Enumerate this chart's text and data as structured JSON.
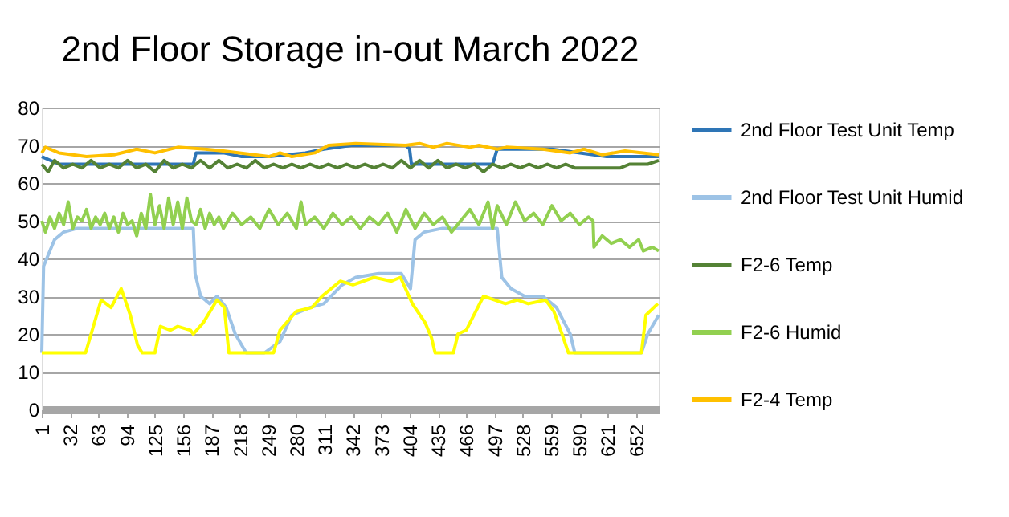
{
  "chart_data": {
    "type": "line",
    "title": "2nd Floor Storage in-out March 2022",
    "xlim": [
      1,
      677
    ],
    "xticks": [
      1,
      32,
      63,
      94,
      125,
      156,
      187,
      218,
      249,
      280,
      311,
      342,
      373,
      404,
      435,
      466,
      497,
      528,
      559,
      590,
      621,
      652
    ],
    "ylim": [
      0,
      80
    ],
    "yticks": [
      0,
      10,
      20,
      30,
      40,
      50,
      60,
      70,
      80
    ],
    "grid": "y",
    "legend": "right",
    "line_style": "solid",
    "marker": "none",
    "series": [
      {
        "name": "2nd Floor Test Unit Temp",
        "color": "#2e75b6",
        "x": [
          1,
          20,
          60,
          100,
          140,
          167,
          170,
          200,
          220,
          250,
          290,
          310,
          340,
          400,
          404,
          406,
          450,
          495,
          500,
          560,
          620,
          677
        ],
        "values": [
          67,
          65,
          65,
          65,
          65,
          65,
          68,
          68,
          67,
          67,
          68,
          69,
          70,
          70,
          69,
          65,
          65,
          65,
          69,
          69,
          67,
          67
        ]
      },
      {
        "name": "2nd Floor Test Unit Humid",
        "color": "#9dc3e6",
        "x": [
          1,
          3,
          15,
          25,
          40,
          100,
          167,
          169,
          175,
          185,
          193,
          203,
          213,
          225,
          245,
          262,
          275,
          295,
          310,
          330,
          345,
          370,
          395,
          405,
          410,
          420,
          440,
          495,
          500,
          505,
          515,
          530,
          550,
          565,
          580,
          585,
          658,
          665,
          677
        ],
        "values": [
          15,
          38,
          45,
          47,
          48,
          48,
          48,
          36,
          30,
          28,
          30,
          27,
          20,
          15,
          15,
          18,
          25,
          27,
          28,
          33,
          35,
          36,
          36,
          32,
          45,
          47,
          48,
          48,
          48,
          35,
          32,
          30,
          30,
          27,
          20,
          15,
          15,
          20,
          25
        ]
      },
      {
        "name": "F2-6 Temp",
        "color": "#548235",
        "x": [
          1,
          8,
          15,
          25,
          35,
          45,
          55,
          65,
          75,
          85,
          95,
          105,
          115,
          125,
          135,
          145,
          155,
          165,
          175,
          185,
          195,
          205,
          215,
          225,
          235,
          245,
          255,
          265,
          275,
          285,
          295,
          305,
          315,
          325,
          335,
          345,
          355,
          365,
          375,
          385,
          395,
          405,
          415,
          425,
          435,
          445,
          455,
          465,
          475,
          485,
          495,
          505,
          515,
          525,
          535,
          545,
          555,
          565,
          575,
          585,
          595,
          605,
          615,
          625,
          635,
          645,
          655,
          665,
          677
        ],
        "values": [
          65,
          63,
          66,
          64,
          65,
          64,
          66,
          64,
          65,
          64,
          66,
          64,
          65,
          63,
          66,
          64,
          65,
          64,
          66,
          64,
          66,
          64,
          65,
          64,
          66,
          64,
          65,
          64,
          65,
          64,
          65,
          64,
          65,
          64,
          65,
          64,
          65,
          64,
          65,
          64,
          66,
          64,
          66,
          64,
          66,
          64,
          65,
          64,
          65,
          63,
          65,
          64,
          65,
          64,
          65,
          64,
          65,
          64,
          65,
          64,
          64,
          64,
          64,
          64,
          64,
          65,
          65,
          65,
          66
        ]
      },
      {
        "name": "F2-6 Humid",
        "color": "#92d050",
        "x": [
          1,
          5,
          10,
          15,
          20,
          25,
          30,
          35,
          40,
          45,
          50,
          55,
          60,
          65,
          70,
          75,
          80,
          85,
          90,
          95,
          100,
          105,
          110,
          115,
          120,
          125,
          130,
          135,
          140,
          145,
          150,
          155,
          160,
          165,
          170,
          175,
          180,
          185,
          190,
          195,
          200,
          210,
          220,
          230,
          240,
          250,
          260,
          270,
          280,
          285,
          290,
          300,
          310,
          320,
          330,
          340,
          350,
          360,
          370,
          380,
          390,
          400,
          410,
          420,
          430,
          440,
          450,
          460,
          470,
          480,
          490,
          495,
          500,
          510,
          520,
          530,
          540,
          550,
          560,
          570,
          580,
          590,
          600,
          605,
          606,
          615,
          625,
          635,
          645,
          655,
          660,
          670,
          677
        ],
        "values": [
          50,
          47,
          51,
          48,
          52,
          49,
          55,
          48,
          51,
          50,
          53,
          48,
          51,
          49,
          52,
          48,
          51,
          47,
          52,
          49,
          50,
          46,
          52,
          48,
          57,
          49,
          54,
          48,
          56,
          49,
          55,
          48,
          56,
          50,
          49,
          53,
          48,
          52,
          49,
          51,
          48,
          52,
          49,
          51,
          48,
          53,
          49,
          52,
          48,
          55,
          49,
          51,
          48,
          52,
          49,
          51,
          48,
          51,
          49,
          52,
          47,
          53,
          48,
          52,
          49,
          51,
          47,
          50,
          53,
          49,
          55,
          48,
          54,
          49,
          55,
          50,
          52,
          49,
          54,
          50,
          52,
          49,
          51,
          50,
          43,
          46,
          44,
          45,
          43,
          45,
          42,
          43,
          42
        ]
      },
      {
        "name": "F2-4 Temp",
        "color": "#ffc000",
        "x": [
          1,
          5,
          20,
          50,
          80,
          105,
          125,
          150,
          180,
          200,
          250,
          262,
          275,
          300,
          315,
          345,
          400,
          415,
          430,
          445,
          470,
          480,
          500,
          510,
          550,
          580,
          595,
          615,
          640,
          677
        ],
        "values": [
          68,
          69.5,
          68,
          67,
          67.5,
          69,
          68,
          69.5,
          69,
          68.5,
          67,
          68,
          67,
          68,
          70,
          70.5,
          70,
          70.5,
          69.5,
          70.5,
          69.5,
          70,
          69,
          69.5,
          69,
          68,
          69,
          67.5,
          68.5,
          67.5
        ]
      },
      {
        "color": "#ffff00",
        "x": [
          1,
          49,
          66,
          77,
          88,
          98,
          106,
          111,
          125,
          131,
          142,
          150,
          164,
          167,
          178,
          193,
          201,
          206,
          255,
          262,
          280,
          297,
          308,
          328,
          342,
          365,
          384,
          394,
          407,
          421,
          428,
          432,
          452,
          457,
          466,
          485,
          497,
          509,
          522,
          534,
          553,
          562,
          571,
          578,
          658,
          663,
          676
        ],
        "values": [
          15,
          15,
          29,
          27,
          32,
          25,
          17,
          15,
          15,
          22,
          21,
          22,
          21,
          20,
          23,
          29,
          27,
          15,
          15,
          21,
          26,
          27,
          30,
          34,
          33,
          35,
          34,
          35,
          28,
          23,
          19,
          15,
          15,
          20,
          21,
          30,
          29,
          28,
          29,
          28,
          29,
          26,
          20,
          15,
          15,
          25,
          28
        ]
      }
    ]
  }
}
